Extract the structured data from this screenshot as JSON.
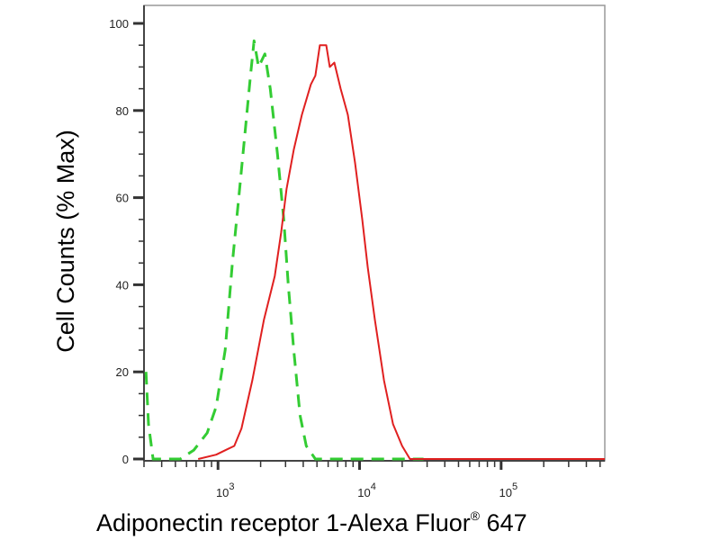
{
  "chart_data": {
    "type": "line",
    "title": "",
    "xlabel": "Adiponectin receptor 1-Alexa Fluor",
    "xlabel_superscript": "®",
    "xlabel_suffix": " 647",
    "ylabel": "Cell Counts (% Max)",
    "x_scale": "log",
    "xlim": [
      300,
      540000
    ],
    "ylim": [
      0,
      100
    ],
    "y_ticks": [
      0,
      20,
      40,
      60,
      80,
      100
    ],
    "x_ticks": [
      {
        "value": 1000,
        "base": "10",
        "exp": "3"
      },
      {
        "value": 10000,
        "base": "10",
        "exp": "4"
      },
      {
        "value": 100000,
        "base": "10",
        "exp": "5"
      }
    ],
    "grid": false,
    "series": [
      {
        "color": "#33cc33",
        "style": "dashed",
        "x": [
          310,
          323,
          348,
          540,
          673,
          838,
          971,
          1124,
          1264,
          1401,
          1553,
          1696,
          1798,
          1934,
          2144,
          2339,
          2631,
          2916,
          3137,
          3427,
          3796,
          4204,
          4874,
          28300
        ],
        "y": [
          20,
          8,
          0,
          0,
          2,
          6,
          12,
          25,
          45,
          60,
          75,
          88,
          96,
          90,
          93,
          85,
          70,
          55,
          40,
          25,
          10,
          3,
          0,
          0
        ]
      },
      {
        "color": "#e02020",
        "style": "solid",
        "x": [
          724,
          971,
          1124,
          1302,
          1464,
          1746,
          2113,
          2519,
          2791,
          3048,
          3427,
          3909,
          4530,
          4874,
          5244,
          5812,
          6160,
          6638,
          7354,
          8267,
          9295,
          10450,
          11420,
          12830,
          14880,
          17240,
          19980,
          22680,
          540000
        ],
        "y": [
          0,
          1,
          2,
          3,
          7,
          18,
          32,
          42,
          52,
          62,
          71,
          79,
          86,
          88,
          95,
          95,
          90,
          91,
          85,
          79,
          68,
          55,
          44,
          32,
          18,
          8,
          3,
          0,
          0
        ]
      }
    ]
  }
}
